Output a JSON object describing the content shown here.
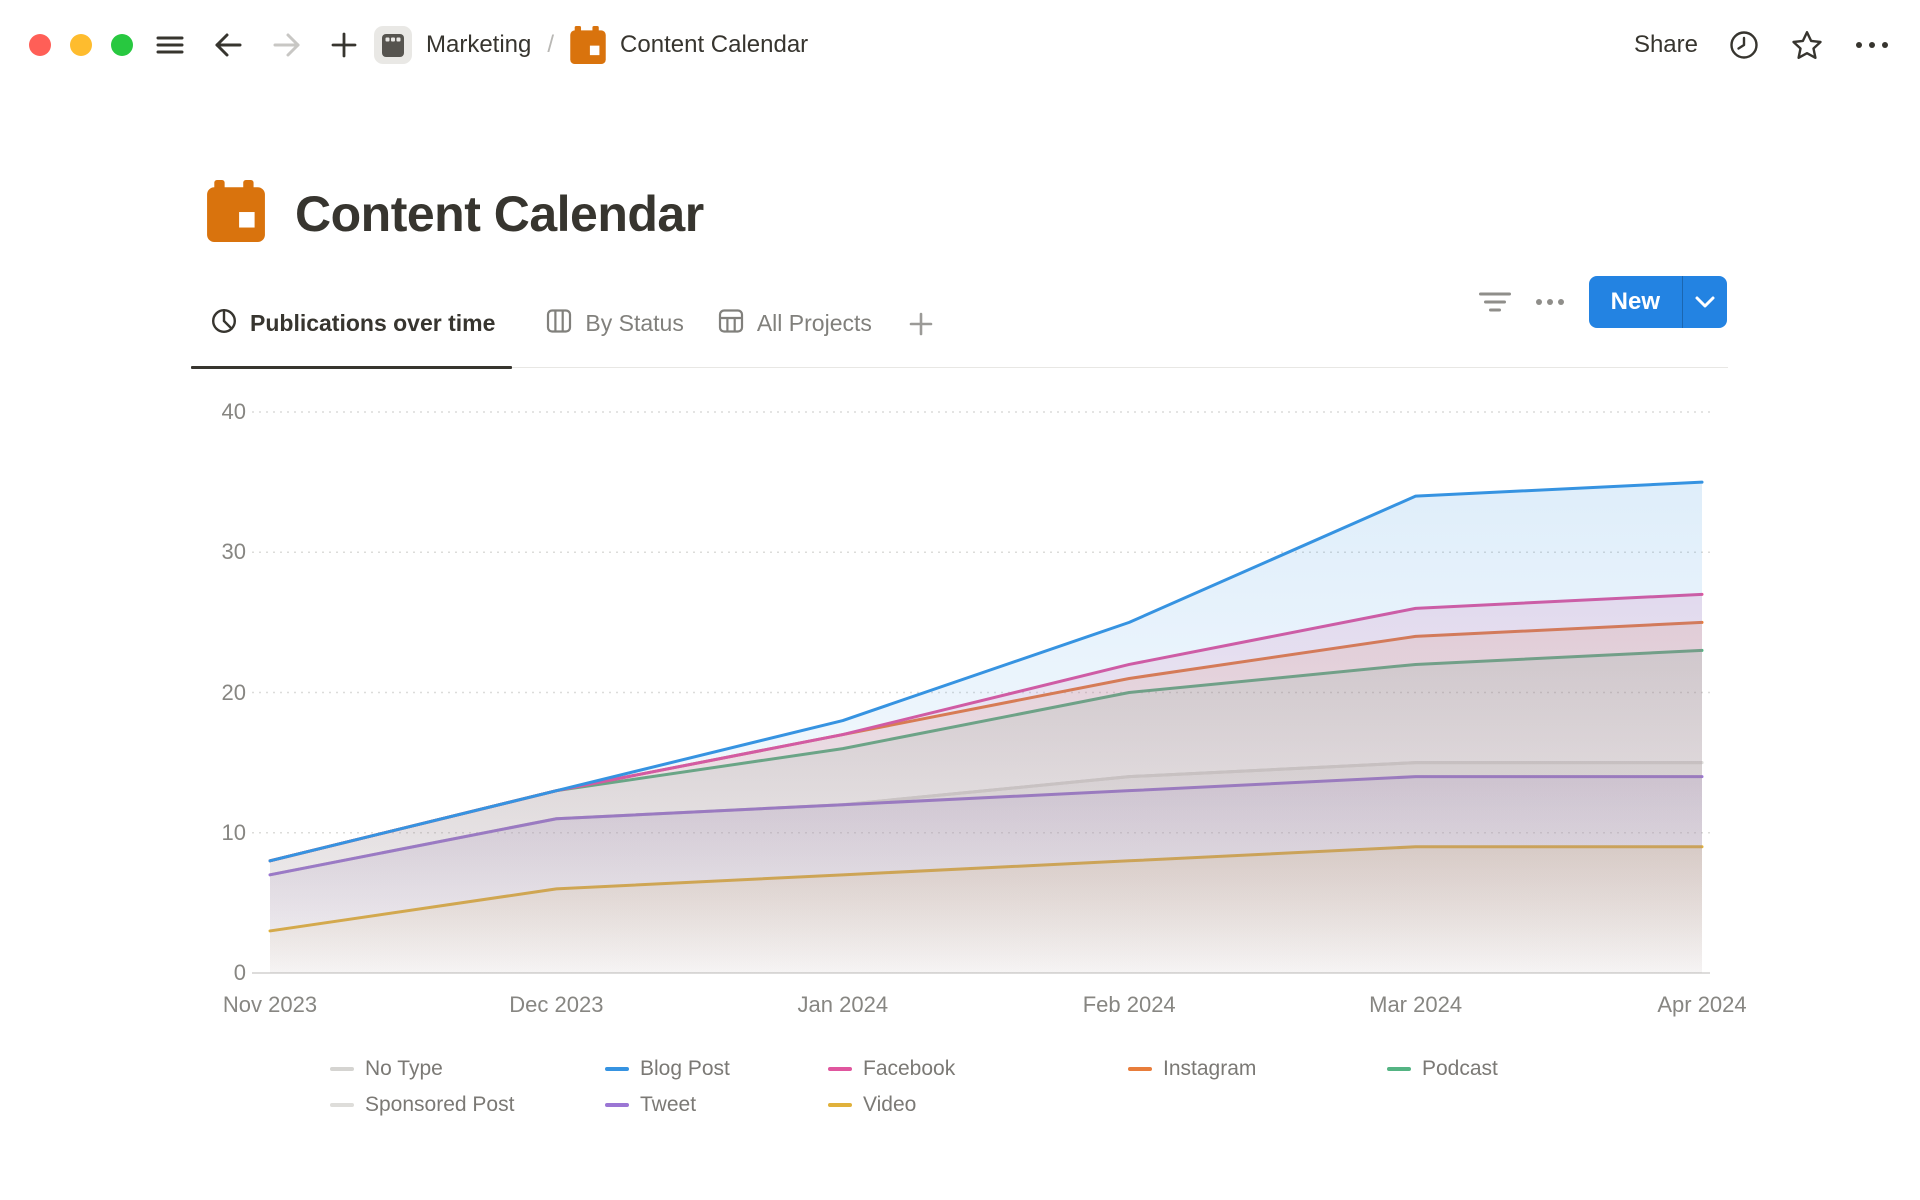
{
  "topbar": {
    "breadcrumb": {
      "workspace_label": "Marketing",
      "separator": "/",
      "page_label": "Content Calendar"
    },
    "share_label": "Share",
    "icons": {
      "menu": "hamburger-icon",
      "back": "back-arrow-icon",
      "forward": "forward-arrow-icon",
      "new_tab": "plus-icon",
      "workspace": "clapperboard-tile-icon",
      "history": "history-clock-icon",
      "favorite": "star-icon",
      "more": "ellipsis-icon"
    },
    "traffic_light_colors": {
      "close": "#FF5F57",
      "minimize": "#FEBC2E",
      "zoom": "#28C840"
    }
  },
  "page": {
    "title": "Content Calendar",
    "icon": "calendar-icon",
    "icon_color": "#D9730D"
  },
  "view_tabs": {
    "tabs": [
      {
        "label": "Publications over time",
        "icon": "pie-chart-icon",
        "active": true
      },
      {
        "label": "By Status",
        "icon": "board-icon",
        "active": false
      },
      {
        "label": "All Projects",
        "icon": "table-icon",
        "active": false
      }
    ],
    "controls": {
      "filter_icon": "filter-lines-icon",
      "more_icon": "ellipsis-icon"
    },
    "new_button": {
      "label": "New",
      "color": "#2383E2"
    }
  },
  "chart_data": {
    "type": "area",
    "title": "Publications over time",
    "x": [
      "Nov 2023",
      "Dec 2023",
      "Jan 2024",
      "Feb 2024",
      "Mar 2024",
      "Apr 2024"
    ],
    "xlabel": "",
    "ylabel": "",
    "ylim": [
      0,
      40
    ],
    "yticks": [
      0,
      10,
      20,
      30,
      40
    ],
    "grid": "horizontal-dotted",
    "legend_position": "bottom",
    "series": [
      {
        "name": "No Type",
        "color": "#d5d4d1",
        "values": [
          7,
          11,
          12,
          14,
          15,
          15
        ]
      },
      {
        "name": "Blog Post",
        "color": "#3693E1",
        "values": [
          8,
          13,
          18,
          25,
          34,
          35
        ]
      },
      {
        "name": "Facebook",
        "color": "#E0569E",
        "values": [
          8,
          13,
          17,
          22,
          26,
          27
        ]
      },
      {
        "name": "Instagram",
        "color": "#E87D3B",
        "values": [
          8,
          13,
          17,
          21,
          24,
          25
        ]
      },
      {
        "name": "Podcast",
        "color": "#54B483",
        "values": [
          8,
          13,
          16,
          20,
          22,
          23
        ]
      },
      {
        "name": "Sponsored Post",
        "color": "#DEDDDA",
        "values": [
          7,
          11,
          12,
          14,
          15,
          15
        ]
      },
      {
        "name": "Tweet",
        "color": "#9B76D4",
        "values": [
          7,
          11,
          12,
          13,
          14,
          14
        ]
      },
      {
        "name": "Video",
        "color": "#E0B13B",
        "values": [
          3,
          6,
          7,
          8,
          9,
          9
        ]
      }
    ]
  }
}
